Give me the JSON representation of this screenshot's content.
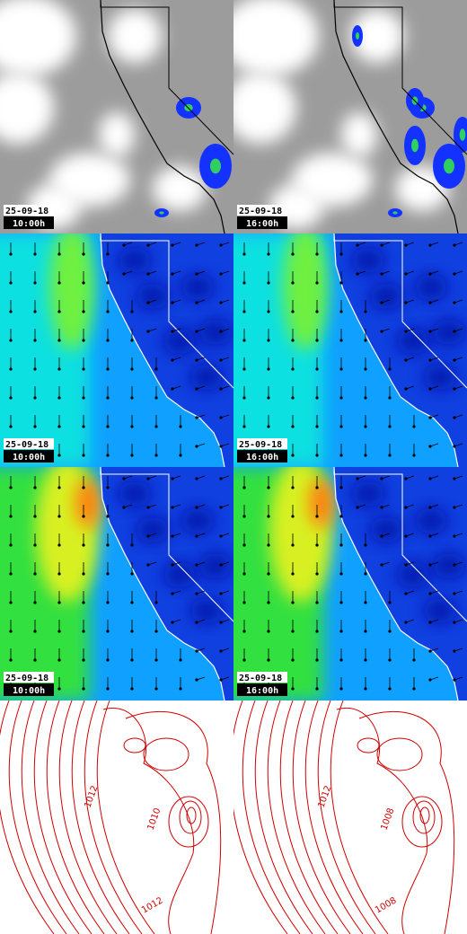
{
  "forecast_panels": [
    [
      {
        "date": "25-09-18",
        "time": "10:00h"
      },
      {
        "date": "25-09-18",
        "time": "16:00h"
      }
    ],
    [
      {
        "date": "25-09-18",
        "time": "10:00h"
      },
      {
        "date": "25-09-18",
        "time": "16:00h"
      }
    ],
    [
      {
        "date": "25-09-18",
        "time": "10:00h"
      },
      {
        "date": "25-09-18",
        "time": "16:00h"
      }
    ]
  ],
  "pressure_panels": [
    {
      "contour_labels": [
        "1012",
        "1010",
        "1012"
      ]
    },
    {
      "contour_labels": [
        "1012",
        "1008",
        "1008"
      ]
    }
  ]
}
